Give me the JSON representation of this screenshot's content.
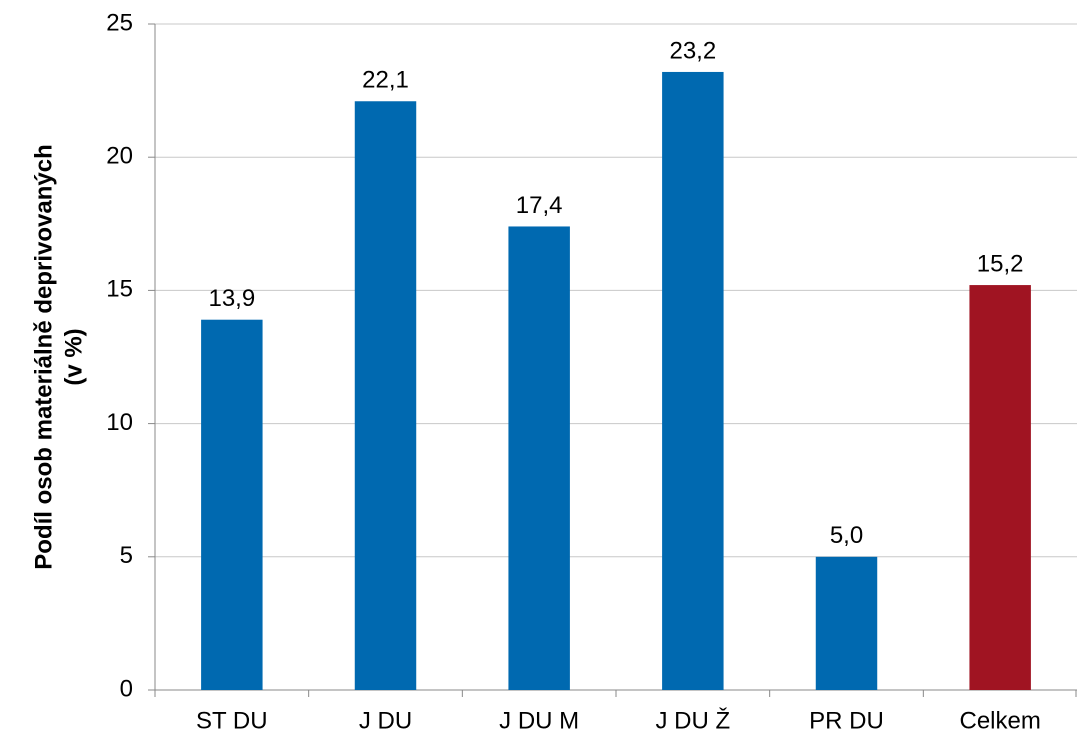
{
  "chart_data": {
    "type": "bar",
    "ylabel": [
      "Podíl osob materiálně deprivovaných",
      "(v %)"
    ],
    "categories": [
      "ST DU",
      "J DU",
      "J DU M",
      "J DU Ž",
      "PR DU",
      "Celkem"
    ],
    "values": [
      13.9,
      22.1,
      17.4,
      23.2,
      5.0,
      15.2
    ],
    "value_labels": [
      "13,9",
      "22,1",
      "17,4",
      "23,2",
      "5,0",
      "15,2"
    ],
    "colors": [
      "#0069b0",
      "#0069b0",
      "#0069b0",
      "#0069b0",
      "#0069b0",
      "#a01422"
    ],
    "ylim": [
      0,
      25
    ],
    "yticks": [
      0,
      5,
      10,
      15,
      20,
      25
    ],
    "grid": true
  }
}
